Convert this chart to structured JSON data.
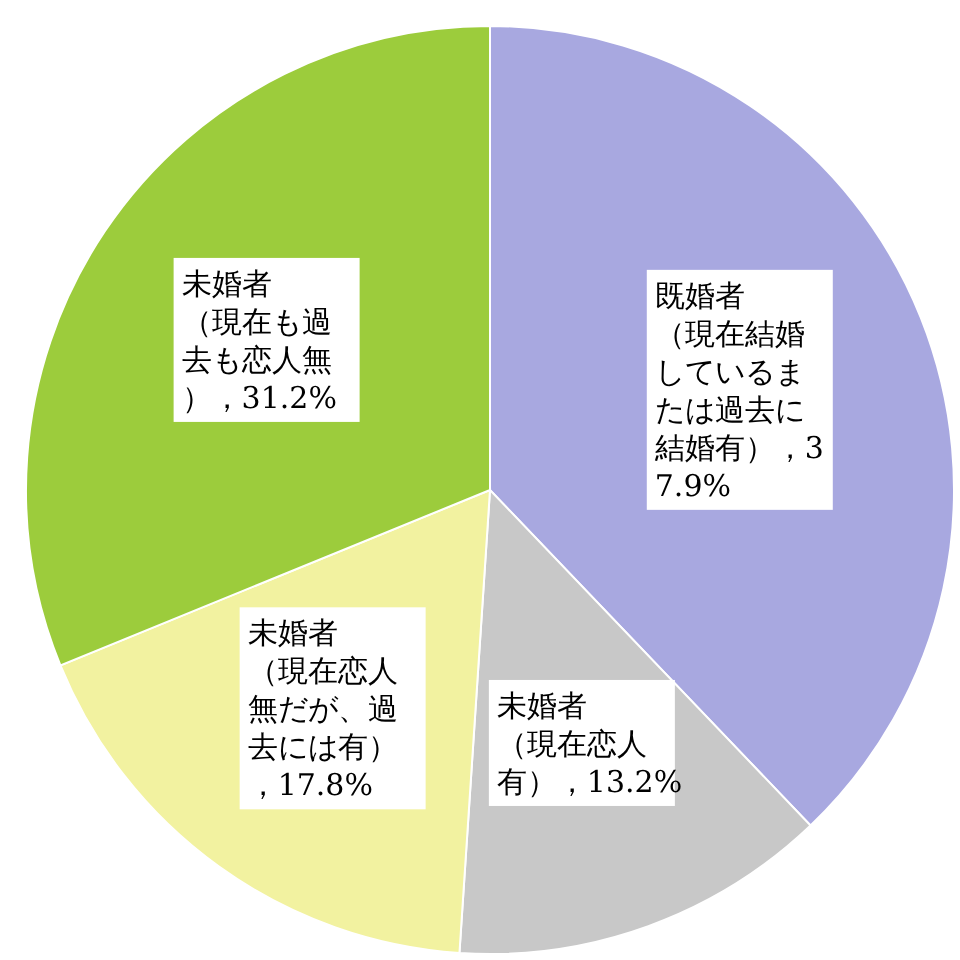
{
  "chart_data": {
    "type": "pie",
    "categories": [
      "既婚者（現在結婚しているまたは過去に結婚有）",
      "未婚者（現在恋人有）",
      "未婚者（現在恋人無だが、過去には有）",
      "未婚者（現在も過去も恋人無）"
    ],
    "values": [
      37.9,
      13.2,
      17.8,
      31.2
    ],
    "value_labels": [
      "，37.9%",
      "，13.2%",
      "，17.8%",
      "，31.2%"
    ],
    "colors": [
      "#a8a8e0",
      "#c8c8c8",
      "#f2f2a0",
      "#9ccc3c"
    ]
  }
}
